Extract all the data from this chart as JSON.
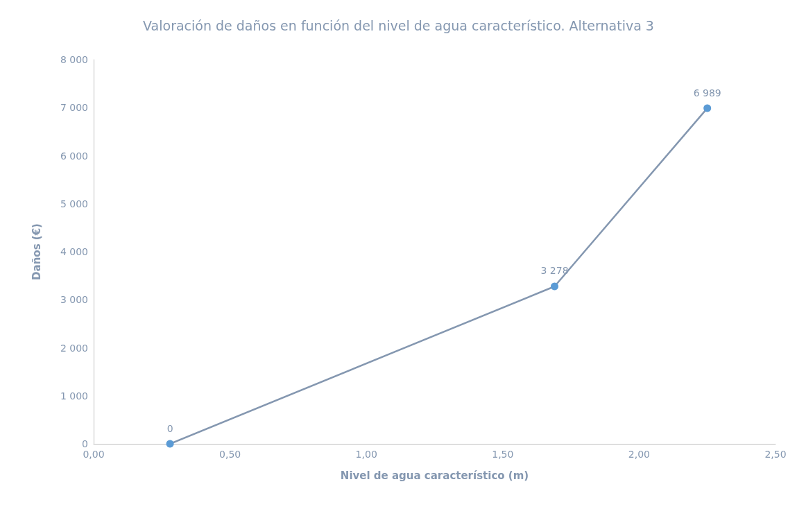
{
  "chart_data": {
    "type": "line",
    "title": "Valoración de daños en función del nivel de agua característico. Alternativa 3",
    "xlabel": "Nivel de agua característico (m)",
    "ylabel": "Daños (€)",
    "x": [
      0.28,
      1.69,
      2.25
    ],
    "series": [
      {
        "color": "#8497b0",
        "colors": [
          "#5b9bd5",
          "#5b9bd5",
          "#5b9bd5"
        ],
        "values": [
          0,
          3278,
          6989
        ],
        "value_labels": [
          "0",
          "3 278",
          "6 989"
        ]
      }
    ],
    "xlim": [
      0,
      2.5
    ],
    "xticks": [
      {
        "value": 0,
        "label": "0,00"
      },
      {
        "value": 0.5,
        "label": "0,50"
      },
      {
        "value": 1,
        "label": "1,00"
      },
      {
        "value": 1.5,
        "label": "1,50"
      },
      {
        "value": 2,
        "label": "2,00"
      },
      {
        "value": 2.5,
        "label": "2,50"
      }
    ],
    "ylim": [
      0,
      8000
    ],
    "yticks": [
      0,
      {
        "value": 1000,
        "label": "1 000"
      },
      {
        "value": 2000,
        "label": "2 000"
      },
      {
        "value": 3000,
        "label": "3 000"
      },
      {
        "value": 4000,
        "label": "4 000"
      },
      {
        "value": 5000,
        "label": "5 000"
      },
      {
        "value": 6000,
        "label": "6 000"
      },
      {
        "value": 7000,
        "label": "7 000"
      },
      {
        "value": 8000,
        "label": "8 000"
      }
    ],
    "grid": false,
    "marker": "circle",
    "line_style": "solid"
  }
}
